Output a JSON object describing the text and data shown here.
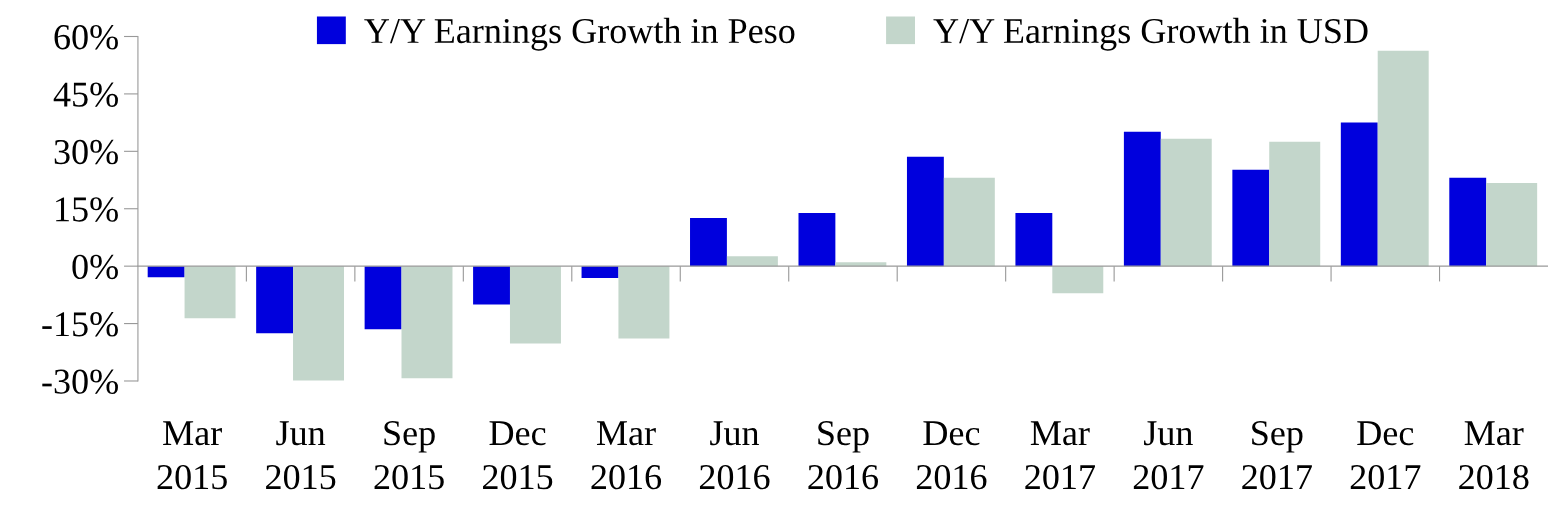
{
  "chart_data": {
    "type": "bar",
    "categories": [
      "Mar\n2015",
      "Jun\n2015",
      "Sep\n2015",
      "Dec\n2015",
      "Mar\n2016",
      "Jun\n2016",
      "Sep\n2016",
      "Dec\n2016",
      "Mar\n2017",
      "Jun\n2017",
      "Sep\n2017",
      "Dec\n2017",
      "Mar\n2018"
    ],
    "series": [
      {
        "name": "Y/Y Earnings Growth in Peso",
        "color": "#0000dd",
        "values": [
          -2.9,
          -17.5,
          -16.5,
          -10.0,
          -3.1,
          12.6,
          13.9,
          28.6,
          13.9,
          35.1,
          25.2,
          37.5,
          23.1
        ]
      },
      {
        "name": "Y/Y Earnings Growth in USD",
        "color": "#c3d6cb",
        "values": [
          -13.6,
          -29.9,
          -29.3,
          -20.2,
          -18.9,
          2.6,
          1.0,
          23.1,
          -7.1,
          33.3,
          32.5,
          56.3,
          21.7
        ]
      }
    ],
    "ylim": [
      -30,
      60
    ],
    "yticks": [
      {
        "value": -30,
        "label": "-30%"
      },
      {
        "value": -15,
        "label": "-15%"
      },
      {
        "value": 0,
        "label": "0%"
      },
      {
        "value": 15,
        "label": "15%"
      },
      {
        "value": 30,
        "label": "30%"
      },
      {
        "value": 45,
        "label": "45%"
      },
      {
        "value": 60,
        "label": "60%"
      }
    ],
    "legend": "top"
  }
}
